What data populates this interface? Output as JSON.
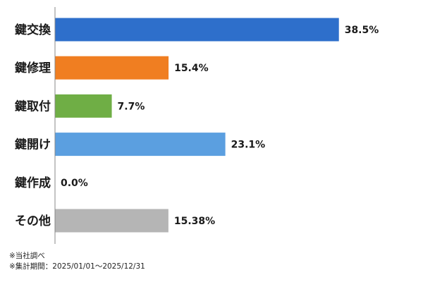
{
  "chart_data": {
    "type": "bar",
    "orientation": "horizontal",
    "categories": [
      "鍵交換",
      "鍵修理",
      "鍵取付",
      "鍵開け",
      "鍵作成",
      "その他"
    ],
    "values": [
      38.5,
      15.4,
      7.7,
      23.1,
      0.0,
      15.38
    ],
    "value_labels": [
      "38.5%",
      "15.4%",
      "7.7%",
      "23.1%",
      "0.0%",
      "15.38%"
    ],
    "colors": [
      "#2e6fcb",
      "#f07e21",
      "#6fae45",
      "#5b9fe0",
      "#2e6fcb",
      "#b5b5b5"
    ],
    "xlim": [
      0,
      50
    ],
    "grid": false,
    "legend": "none",
    "title": "",
    "xlabel": "",
    "ylabel": ""
  },
  "footnotes": {
    "source": "※当社調べ",
    "period": "※集計期間：2025/01/01～2025/12/31"
  }
}
